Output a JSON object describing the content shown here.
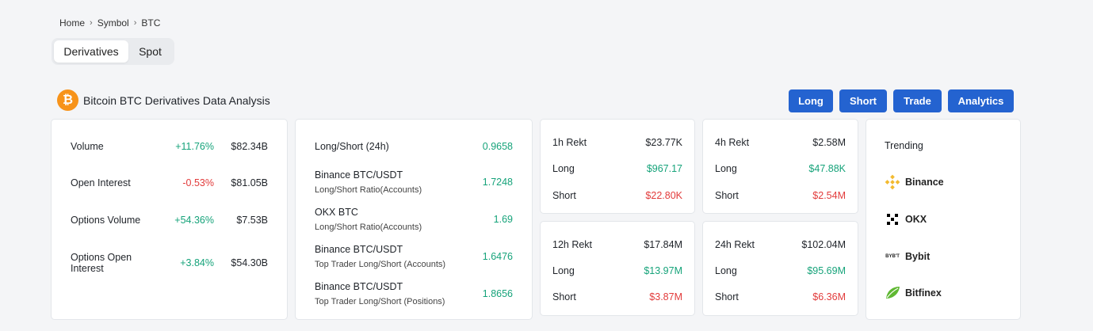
{
  "breadcrumb": [
    "Home",
    "Symbol",
    "BTC"
  ],
  "breadcrumb_sep": "›",
  "tabs": {
    "active": "Derivatives",
    "inactive": "Spot"
  },
  "header": {
    "logo_glyph": "₿",
    "title": "Bitcoin BTC Derivatives Data Analysis"
  },
  "actions": [
    "Long",
    "Short",
    "Trade",
    "Analytics"
  ],
  "volume": [
    {
      "name": "Volume",
      "pct": "+11.76%",
      "value": "$82.34B",
      "trend": "up"
    },
    {
      "name": "Open Interest",
      "pct": "-0.53%",
      "value": "$81.05B",
      "trend": "down"
    },
    {
      "name": "Options Volume",
      "pct": "+54.36%",
      "value": "$7.53B",
      "trend": "up"
    },
    {
      "name": "Options Open Interest",
      "pct": "+3.84%",
      "value": "$54.30B",
      "trend": "up"
    }
  ],
  "longshort": [
    {
      "title": "Long/Short (24h)",
      "sub": "",
      "value": "0.9658"
    },
    {
      "title": "Binance BTC/USDT",
      "sub": "Long/Short Ratio(Accounts)",
      "value": "1.7248"
    },
    {
      "title": "OKX BTC",
      "sub": "Long/Short Ratio(Accounts)",
      "value": "1.69"
    },
    {
      "title": "Binance BTC/USDT",
      "sub": "Top Trader Long/Short (Accounts)",
      "value": "1.6476"
    },
    {
      "title": "Binance BTC/USDT",
      "sub": "Top Trader Long/Short (Positions)",
      "value": "1.8656"
    }
  ],
  "rekt": [
    {
      "label": "1h Rekt",
      "total": "$23.77K",
      "long_label": "Long",
      "long": "$967.17",
      "short_label": "Short",
      "short": "$22.80K"
    },
    {
      "label": "4h Rekt",
      "total": "$2.58M",
      "long_label": "Long",
      "long": "$47.88K",
      "short_label": "Short",
      "short": "$2.54M"
    },
    {
      "label": "12h Rekt",
      "total": "$17.84M",
      "long_label": "Long",
      "long": "$13.97M",
      "short_label": "Short",
      "short": "$3.87M"
    },
    {
      "label": "24h Rekt",
      "total": "$102.04M",
      "long_label": "Long",
      "long": "$95.69M",
      "short_label": "Short",
      "short": "$6.36M"
    }
  ],
  "trending": {
    "title": "Trending",
    "exchanges": [
      {
        "name": "Binance",
        "icon": "binance-icon",
        "color": "#f3ba2f"
      },
      {
        "name": "OKX",
        "icon": "okx-icon",
        "color": "#000000"
      },
      {
        "name": "Bybit",
        "icon": "bybit-icon",
        "icon_text": "BYB'T",
        "color": "#222222"
      },
      {
        "name": "Bitfinex",
        "icon": "bitfinex-icon",
        "color": "#5fb832"
      }
    ]
  },
  "colors": {
    "accent": "#2463d0",
    "positive": "#16a37a",
    "negative": "#e23b3b",
    "btc": "#f7931a"
  }
}
